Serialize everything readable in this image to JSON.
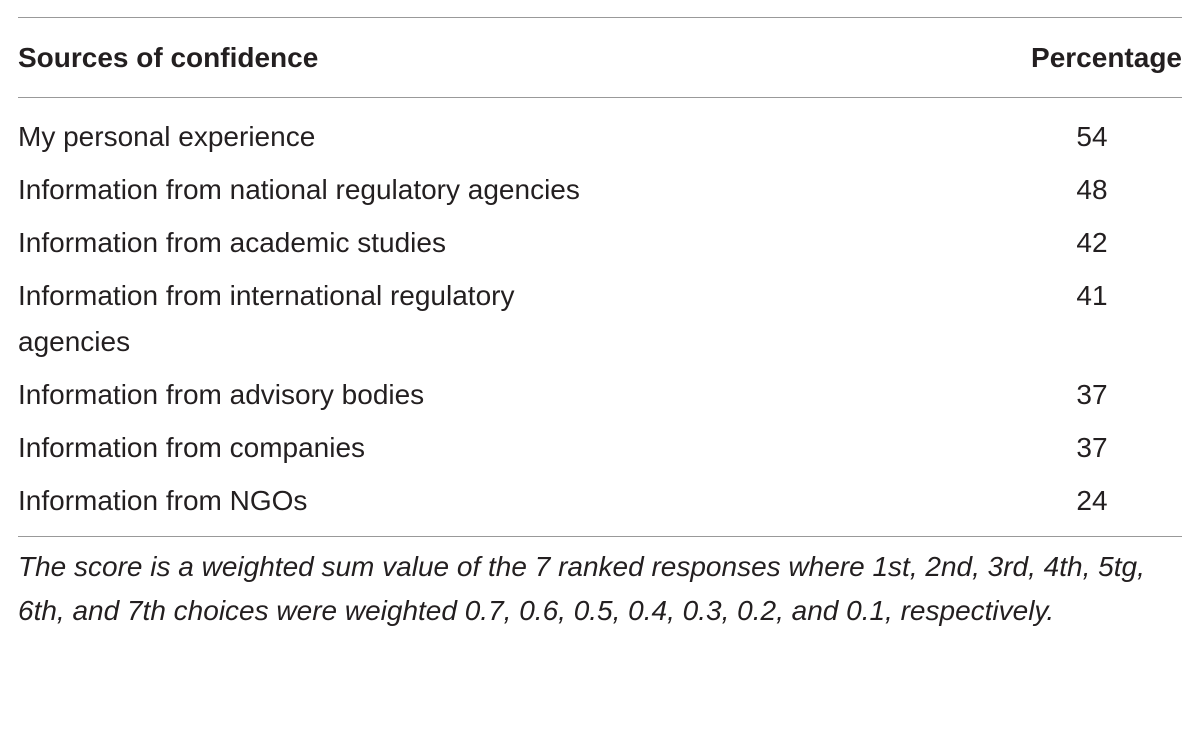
{
  "table": {
    "header": [
      "Sources of confidence",
      "Percentage"
    ],
    "rows": [
      [
        "My personal experience",
        54
      ],
      [
        "Information from national regulatory agencies",
        48
      ],
      [
        "Information from academic studies",
        42
      ],
      [
        "Information from international regulatory agencies",
        41
      ],
      [
        "Information from advisory bodies",
        37
      ],
      [
        "Information from companies",
        37
      ],
      [
        "Information from NGOs",
        24
      ]
    ],
    "footnote": "The score is a weighted sum value of the 7 ranked responses where 1st, 2nd, 3rd, 4th, 5tg, 6th, and 7th choices were weighted 0.7, 0.6, 0.5, 0.4, 0.3, 0.2, and 0.1, respectively."
  }
}
